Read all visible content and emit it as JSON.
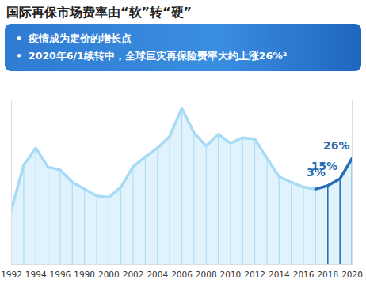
{
  "chart_data": {
    "type": "area",
    "title": "国际再保市场费率由“软”转“硬”",
    "notes": [
      "疫情成为定价的增长点",
      "2020年6/1续转中，全球巨灾再保险费率大约上涨26%²"
    ],
    "x": [
      1992,
      1993,
      1994,
      1995,
      1996,
      1997,
      1998,
      1999,
      2000,
      2001,
      2002,
      2003,
      2004,
      2005,
      2006,
      2007,
      2008,
      2009,
      2010,
      2011,
      2012,
      2013,
      2014,
      2015,
      2016,
      2017,
      2018,
      2019,
      2020
    ],
    "values": [
      80,
      145,
      170,
      142,
      138,
      120,
      110,
      100,
      98,
      113,
      143,
      157,
      170,
      187,
      228,
      192,
      173,
      190,
      177,
      185,
      183,
      155,
      128,
      120,
      113,
      110,
      115,
      125,
      155
    ],
    "color": "#a7dbf5",
    "xlim": [
      1992,
      2020
    ],
    "xticks": [
      1992,
      1994,
      1996,
      1998,
      2000,
      2002,
      2004,
      2006,
      2008,
      2010,
      2012,
      2014,
      2016,
      2018,
      2020
    ],
    "ylim": [
      0,
      240
    ],
    "tick_labels": "x",
    "annotations": [
      {
        "x": 2018,
        "text": "3%"
      },
      {
        "x": 2019,
        "text": "15%"
      },
      {
        "x": 2020,
        "text": "26%"
      }
    ]
  }
}
